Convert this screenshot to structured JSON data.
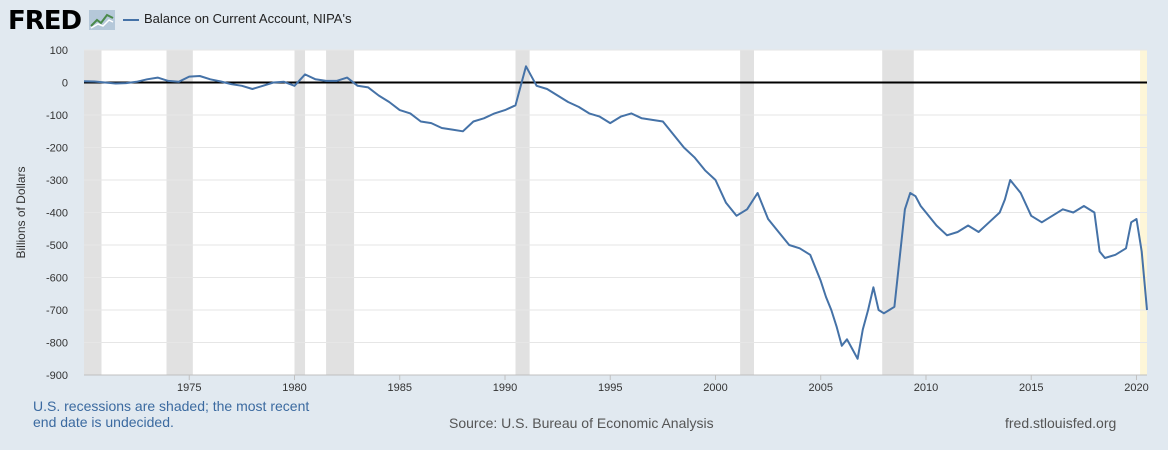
{
  "header": {
    "logo_text": "FRED",
    "legend_label": "Balance on Current Account, NIPA's",
    "series_color": "#4572a7"
  },
  "footer": {
    "note_line1": "U.S. recessions are shaded; the most recent",
    "note_line2": "end date is undecided.",
    "source": "Source: U.S. Bureau of Economic Analysis",
    "site": "fred.stlouisfed.org"
  },
  "chart_data": {
    "type": "line",
    "ylabel": "Billions of Dollars",
    "ylim": [
      -900,
      100
    ],
    "xlim": [
      1970.0,
      2020.5
    ],
    "yticks": [
      100,
      0,
      -100,
      -200,
      -300,
      -400,
      -500,
      -600,
      -700,
      -800,
      -900
    ],
    "xticks": [
      1975,
      1980,
      1985,
      1990,
      1995,
      2000,
      2005,
      2010,
      2015,
      2020
    ],
    "grid": true,
    "recession_bands": [
      [
        1970.0,
        1970.83
      ],
      [
        1973.92,
        1975.17
      ],
      [
        1980.0,
        1980.5
      ],
      [
        1981.5,
        1982.83
      ],
      [
        1990.5,
        1991.17
      ],
      [
        2001.17,
        2001.83
      ],
      [
        2007.92,
        2009.42
      ]
    ],
    "undecided_band": [
      2020.17,
      2020.5
    ],
    "series": [
      {
        "color": "#4572a7",
        "x": [
          1970.0,
          1970.5,
          1971.0,
          1971.5,
          1972.0,
          1972.5,
          1973.0,
          1973.5,
          1974.0,
          1974.5,
          1975.0,
          1975.5,
          1976.0,
          1976.5,
          1977.0,
          1977.5,
          1978.0,
          1978.5,
          1979.0,
          1979.5,
          1980.0,
          1980.5,
          1981.0,
          1981.5,
          1982.0,
          1982.5,
          1983.0,
          1983.5,
          1984.0,
          1984.5,
          1985.0,
          1985.5,
          1986.0,
          1986.5,
          1987.0,
          1987.5,
          1988.0,
          1988.5,
          1989.0,
          1989.5,
          1990.0,
          1990.5,
          1991.0,
          1991.5,
          1992.0,
          1992.5,
          1993.0,
          1993.5,
          1994.0,
          1994.5,
          1995.0,
          1995.5,
          1996.0,
          1996.5,
          1997.0,
          1997.5,
          1998.0,
          1998.5,
          1999.0,
          1999.5,
          2000.0,
          2000.5,
          2001.0,
          2001.5,
          2002.0,
          2002.5,
          2003.0,
          2003.5,
          2004.0,
          2004.5,
          2005.0,
          2005.25,
          2005.5,
          2005.75,
          2006.0,
          2006.25,
          2006.5,
          2006.75,
          2007.0,
          2007.25,
          2007.5,
          2007.75,
          2008.0,
          2008.5,
          2009.0,
          2009.25,
          2009.5,
          2009.75,
          2010.0,
          2010.5,
          2011.0,
          2011.5,
          2012.0,
          2012.5,
          2013.0,
          2013.5,
          2013.75,
          2014.0,
          2014.5,
          2015.0,
          2015.5,
          2016.0,
          2016.5,
          2017.0,
          2017.5,
          2018.0,
          2018.25,
          2018.5,
          2019.0,
          2019.5,
          2019.75,
          2020.0,
          2020.25,
          2020.5
        ],
        "y": [
          4,
          3,
          0,
          -3,
          -2,
          2,
          10,
          15,
          5,
          2,
          18,
          20,
          10,
          3,
          -5,
          -10,
          -20,
          -10,
          0,
          2,
          -10,
          25,
          10,
          5,
          5,
          15,
          -10,
          -15,
          -40,
          -60,
          -85,
          -95,
          -120,
          -125,
          -140,
          -145,
          -150,
          -120,
          -110,
          -95,
          -85,
          -70,
          50,
          -10,
          -20,
          -40,
          -60,
          -75,
          -95,
          -105,
          -125,
          -105,
          -95,
          -110,
          -115,
          -120,
          -160,
          -200,
          -230,
          -270,
          -300,
          -370,
          -410,
          -390,
          -340,
          -420,
          -460,
          -500,
          -510,
          -530,
          -610,
          -660,
          -700,
          -750,
          -810,
          -790,
          -820,
          -850,
          -760,
          -700,
          -630,
          -700,
          -710,
          -690,
          -390,
          -340,
          -350,
          -380,
          -400,
          -440,
          -470,
          -460,
          -440,
          -460,
          -430,
          -400,
          -360,
          -300,
          -340,
          -410,
          -430,
          -410,
          -390,
          -400,
          -380,
          -400,
          -520,
          -540,
          -530,
          -510,
          -430,
          -420,
          -520,
          -700
        ]
      }
    ]
  }
}
